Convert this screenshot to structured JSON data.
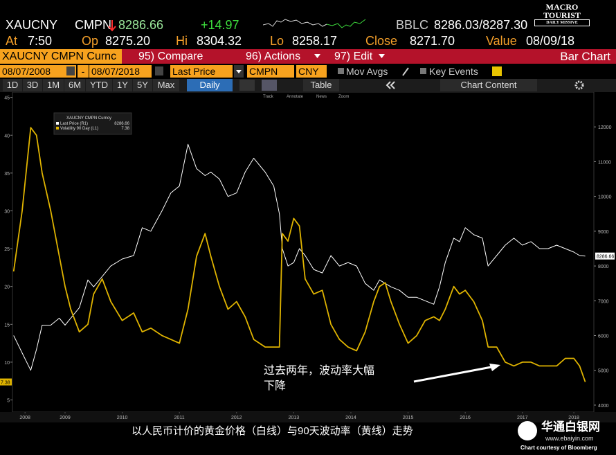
{
  "header": {
    "ticker": "XAUCNY",
    "source": "CMPN",
    "last": "8286.66",
    "change": "+14.97",
    "bid_source": "BBLC",
    "bid_ask": "8286.03/8287.30",
    "quote": [
      {
        "label": "At",
        "value": "7:50"
      },
      {
        "label": "Op",
        "value": "8275.20"
      },
      {
        "label": "Hi",
        "value": "8304.32"
      },
      {
        "label": "Lo",
        "value": "8258.17"
      },
      {
        "label": "Close",
        "value": "8271.70"
      },
      {
        "label": "Value",
        "value": "08/09/18"
      }
    ]
  },
  "logo": [
    "MACRO",
    "TOURIST",
    "DAILY MISSIVE"
  ],
  "menu": {
    "security": "XAUCNY CMPN Curnc",
    "items": [
      "95) Compare",
      "96) Actions",
      "97) Edit"
    ],
    "view": "Bar Chart"
  },
  "settings": {
    "start": "08/07/2008",
    "separator": "-",
    "end": "08/07/2018",
    "field": "Last Price",
    "source": "CMPN",
    "currency": "CNY",
    "options": [
      "Mov Avgs",
      "Key Events"
    ]
  },
  "toolbar": {
    "periods": [
      "1D",
      "3D",
      "1M",
      "6M",
      "YTD",
      "1Y",
      "5Y",
      "Max"
    ],
    "frequency": "Daily",
    "table": "Table",
    "content": "Chart Content",
    "tools": [
      "Track",
      "Annotate",
      "News",
      "Zoom"
    ]
  },
  "chart_data": {
    "type": "line",
    "legend_title": "XAUCNY CMPN Curncy",
    "x": [
      2008.6,
      2008.75,
      2008.9,
      2009.0,
      2009.1,
      2009.25,
      2009.4,
      2009.5,
      2009.6,
      2009.75,
      2009.9,
      2010.0,
      2010.15,
      2010.3,
      2010.5,
      2010.7,
      2010.85,
      2011.0,
      2011.2,
      2011.35,
      2011.5,
      2011.65,
      2011.8,
      2011.95,
      2012.05,
      2012.2,
      2012.35,
      2012.5,
      2012.65,
      2012.8,
      2013.0,
      2013.15,
      2013.25,
      2013.3,
      2013.4,
      2013.5,
      2013.6,
      2013.7,
      2013.85,
      2014.0,
      2014.15,
      2014.3,
      2014.45,
      2014.6,
      2014.75,
      2014.9,
      2015.0,
      2015.1,
      2015.2,
      2015.35,
      2015.5,
      2015.65,
      2015.8,
      2015.95,
      2016.05,
      2016.15,
      2016.3,
      2016.4,
      2016.5,
      2016.65,
      2016.8,
      2016.9,
      2017.05,
      2017.2,
      2017.35,
      2017.5,
      2017.65,
      2017.8,
      2017.95,
      2018.1,
      2018.25,
      2018.4,
      2018.5,
      2018.6
    ],
    "xlim": [
      2008.58,
      2018.75
    ],
    "xticks": [
      {
        "value": 2008.8,
        "label": "2008"
      },
      {
        "value": 2009.5,
        "label": "2009"
      },
      {
        "value": 2010.5,
        "label": "2010"
      },
      {
        "value": 2011.5,
        "label": "2011"
      },
      {
        "value": 2012.5,
        "label": "2012"
      },
      {
        "value": 2013.5,
        "label": "2013"
      },
      {
        "value": 2014.5,
        "label": "2014"
      },
      {
        "value": 2015.5,
        "label": "2015"
      },
      {
        "value": 2016.5,
        "label": "2016"
      },
      {
        "value": 2017.5,
        "label": "2017"
      },
      {
        "value": 2018.4,
        "label": "2018"
      }
    ],
    "ylim": [
      3.4,
      45.7
    ],
    "yticks": [
      5,
      10,
      15,
      20,
      25,
      30,
      35,
      40,
      45
    ],
    "y2lim": [
      3800,
      13000
    ],
    "y2ticks": [
      4000,
      5000,
      6000,
      7000,
      8000,
      9000,
      10000,
      11000,
      12000
    ],
    "series": [
      {
        "name": "Last Price (R1)",
        "color": "#ffffff",
        "axis": "y2",
        "values": [
          6000,
          5500,
          5000,
          5600,
          6300,
          6300,
          6500,
          6300,
          6500,
          6800,
          7600,
          7400,
          7700,
          8000,
          8200,
          8300,
          9100,
          9000,
          9600,
          10100,
          10300,
          11500,
          10800,
          10600,
          10700,
          10500,
          10000,
          10100,
          10700,
          11100,
          10700,
          10300,
          9500,
          8500,
          8000,
          8100,
          8500,
          8300,
          7900,
          7800,
          8300,
          8000,
          8100,
          8000,
          7500,
          7300,
          7600,
          7500,
          7400,
          7300,
          7100,
          7100,
          7000,
          6900,
          7400,
          8100,
          8800,
          8700,
          9100,
          8900,
          8800,
          8000,
          8300,
          8600,
          8800,
          8600,
          8700,
          8500,
          8500,
          8600,
          8500,
          8400,
          8300,
          8286.66
        ]
      },
      {
        "name": "Volatility 90 Day (L1)",
        "color": "#e0b400",
        "values": [
          22,
          30,
          41,
          40,
          35,
          30,
          24,
          20,
          17,
          14,
          15,
          19,
          21,
          18,
          15.5,
          16.5,
          14,
          14.5,
          13.5,
          13,
          12.5,
          17,
          24,
          27,
          24,
          20,
          17,
          18,
          16,
          13,
          12,
          12,
          12,
          27,
          26,
          29,
          28,
          21,
          19,
          19.5,
          15,
          13,
          12,
          11.5,
          14,
          18,
          20,
          20.5,
          18,
          15,
          12.5,
          13.5,
          15.5,
          16,
          15.5,
          17,
          20,
          19,
          19.5,
          18,
          15.5,
          12,
          12,
          10,
          9.5,
          10,
          10,
          9.5,
          9.5,
          9.5,
          10.5,
          10.5,
          9.5,
          7.38
        ]
      }
    ],
    "annotation": [
      "过去两年，波动率大幅",
      "下降"
    ]
  },
  "caption": "以人民币计价的黄金价格（白线）与90天波动率（黄线）走势",
  "watermark": {
    "name": "华通白银网",
    "url": "www.ebaiyin.com"
  },
  "credit": "Chart courtesy of Bloomberg"
}
